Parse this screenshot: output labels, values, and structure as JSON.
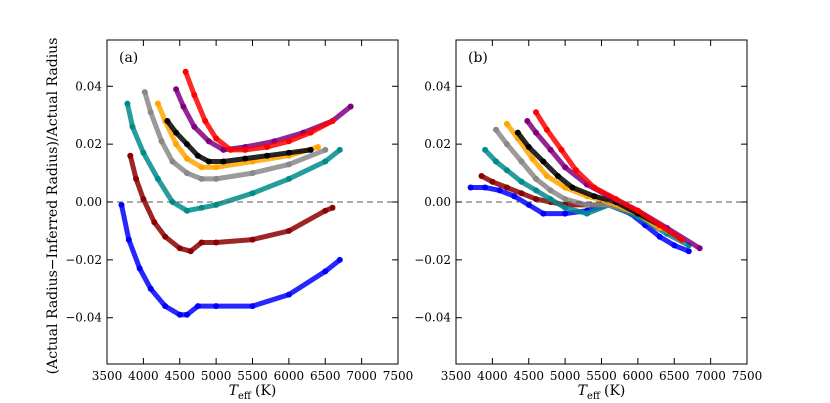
{
  "chart_data": {
    "type": "scatter",
    "ylabel": "(Actual Radius−Inferred Radius)/Actual Radius",
    "xlabel_main": "T",
    "xlabel_sub": "eff",
    "xlabel_unit": "(K)",
    "xlim": [
      3500,
      7500
    ],
    "ylim": [
      -0.056,
      0.056
    ],
    "xticks": [
      "3500",
      "4000",
      "4500",
      "5000",
      "5500",
      "6000",
      "6500",
      "7000",
      "7500"
    ],
    "xtick_values": [
      3500,
      4000,
      4500,
      5000,
      5500,
      6000,
      6500,
      7000,
      7500
    ],
    "yticks": [
      "0.04",
      "0.02",
      "0.00",
      "−0.02",
      "−0.04"
    ],
    "ytick_values": [
      0.04,
      0.02,
      0.0,
      -0.02,
      -0.04
    ],
    "reference_line": 0.0,
    "panels": [
      {
        "label": "(a)",
        "series": [
          {
            "name": "blue",
            "color": "#0000ff",
            "x": [
              3700,
              3800,
              3950,
              4100,
              4300,
              4500,
              4600,
              4750,
              5000,
              5500,
              6000,
              6500,
              6700
            ],
            "y": [
              -0.001,
              -0.013,
              -0.023,
              -0.03,
              -0.036,
              -0.039,
              -0.039,
              -0.036,
              -0.036,
              -0.036,
              -0.032,
              -0.024,
              -0.02
            ]
          },
          {
            "name": "darkred",
            "color": "#8b0000",
            "x": [
              3820,
              3900,
              4000,
              4150,
              4300,
              4500,
              4650,
              4800,
              5000,
              5500,
              6000,
              6500,
              6600
            ],
            "y": [
              0.016,
              0.008,
              0.001,
              -0.007,
              -0.012,
              -0.016,
              -0.017,
              -0.014,
              -0.014,
              -0.013,
              -0.01,
              -0.003,
              -0.002
            ]
          },
          {
            "name": "teal",
            "color": "#008b8b",
            "x": [
              3780,
              3850,
              4000,
              4200,
              4400,
              4600,
              4800,
              5000,
              5500,
              6000,
              6500,
              6700
            ],
            "y": [
              0.034,
              0.026,
              0.017,
              0.008,
              0.0,
              -0.003,
              -0.002,
              -0.001,
              0.003,
              0.008,
              0.014,
              0.018
            ]
          },
          {
            "name": "gray",
            "color": "#888888",
            "x": [
              4020,
              4100,
              4250,
              4400,
              4600,
              4800,
              5000,
              5500,
              6000,
              6500
            ],
            "y": [
              0.038,
              0.031,
              0.021,
              0.014,
              0.01,
              0.008,
              0.008,
              0.01,
              0.013,
              0.018
            ]
          },
          {
            "name": "orange",
            "color": "#ffa500",
            "x": [
              4200,
              4300,
              4450,
              4600,
              4800,
              5000,
              5500,
              6000,
              6400
            ],
            "y": [
              0.034,
              0.028,
              0.02,
              0.015,
              0.012,
              0.012,
              0.014,
              0.016,
              0.019
            ]
          },
          {
            "name": "black",
            "color": "#000000",
            "x": [
              4330,
              4450,
              4600,
              4750,
              4900,
              5100,
              5400,
              5700,
              6000,
              6300
            ],
            "y": [
              0.028,
              0.024,
              0.02,
              0.016,
              0.014,
              0.014,
              0.015,
              0.016,
              0.017,
              0.018
            ]
          },
          {
            "name": "purple",
            "color": "#800080",
            "x": [
              4450,
              4550,
              4700,
              4900,
              5100,
              5400,
              5800,
              6200,
              6600,
              6850
            ],
            "y": [
              0.039,
              0.033,
              0.026,
              0.021,
              0.018,
              0.019,
              0.021,
              0.024,
              0.028,
              0.033
            ]
          },
          {
            "name": "red",
            "color": "#ff0000",
            "x": [
              4580,
              4700,
              4850,
              5000,
              5200,
              5400,
              5700,
              6000,
              6300,
              6600
            ],
            "y": [
              0.045,
              0.037,
              0.028,
              0.022,
              0.018,
              0.018,
              0.019,
              0.021,
              0.024,
              0.028
            ]
          }
        ]
      },
      {
        "label": "(b)",
        "series": [
          {
            "name": "blue",
            "color": "#0000ff",
            "x": [
              3700,
              3900,
              4100,
              4300,
              4500,
              4700,
              5000,
              5300,
              5600,
              5900,
              6100,
              6300,
              6500,
              6700
            ],
            "y": [
              0.005,
              0.005,
              0.004,
              0.002,
              -0.001,
              -0.004,
              -0.004,
              -0.003,
              -0.001,
              -0.004,
              -0.008,
              -0.012,
              -0.015,
              -0.017
            ]
          },
          {
            "name": "darkred",
            "color": "#8b0000",
            "x": [
              3850,
              4000,
              4200,
              4400,
              4600,
              4800,
              5000,
              5300,
              5600,
              6000,
              6300,
              6600
            ],
            "y": [
              0.009,
              0.007,
              0.005,
              0.003,
              0.001,
              0.0,
              -0.001,
              -0.001,
              -0.001,
              -0.004,
              -0.008,
              -0.013
            ]
          },
          {
            "name": "teal",
            "color": "#008b8b",
            "x": [
              3900,
              4050,
              4200,
              4400,
              4600,
              4800,
              5000,
              5300,
              5600,
              6000,
              6400,
              6700
            ],
            "y": [
              0.018,
              0.014,
              0.011,
              0.007,
              0.004,
              0.001,
              -0.002,
              -0.004,
              -0.001,
              -0.005,
              -0.011,
              -0.015
            ]
          },
          {
            "name": "gray",
            "color": "#888888",
            "x": [
              4050,
              4200,
              4400,
              4600,
              4800,
              5000,
              5300,
              5600,
              6000,
              6400
            ],
            "y": [
              0.025,
              0.02,
              0.014,
              0.008,
              0.004,
              0.001,
              -0.001,
              -0.001,
              -0.004,
              -0.01
            ]
          },
          {
            "name": "orange",
            "color": "#ffa500",
            "x": [
              4200,
              4350,
              4550,
              4750,
              5000,
              5300,
              5600,
              6000,
              6300
            ],
            "y": [
              0.027,
              0.022,
              0.015,
              0.009,
              0.005,
              0.002,
              0.0,
              -0.004,
              -0.009
            ]
          },
          {
            "name": "black",
            "color": "#000000",
            "x": [
              4350,
              4500,
              4700,
              4900,
              5100,
              5400,
              5700,
              6000,
              6300
            ],
            "y": [
              0.024,
              0.019,
              0.014,
              0.009,
              0.005,
              0.002,
              0.0,
              -0.004,
              -0.008
            ]
          },
          {
            "name": "purple",
            "color": "#800080",
            "x": [
              4480,
              4600,
              4800,
              5000,
              5300,
              5600,
              6000,
              6400,
              6850
            ],
            "y": [
              0.028,
              0.024,
              0.018,
              0.012,
              0.006,
              0.002,
              -0.003,
              -0.009,
              -0.016
            ]
          },
          {
            "name": "red",
            "color": "#ff0000",
            "x": [
              4600,
              4750,
              4950,
              5150,
              5400,
              5700,
              6000,
              6300,
              6600
            ],
            "y": [
              0.031,
              0.025,
              0.018,
              0.011,
              0.005,
              0.001,
              -0.003,
              -0.008,
              -0.013
            ]
          }
        ]
      }
    ]
  }
}
